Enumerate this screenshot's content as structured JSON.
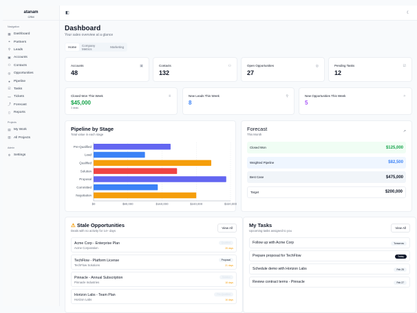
{
  "sidebar": {
    "brand": "atanam",
    "brand_sub": "CRM",
    "sections": [
      {
        "label": "Navigation",
        "items": [
          {
            "label": "Dashboard",
            "icon": "grid-icon"
          },
          {
            "label": "Partners",
            "icon": "handshake-icon"
          },
          {
            "label": "Leads",
            "icon": "user-plus-icon"
          },
          {
            "label": "Accounts",
            "icon": "building-icon"
          },
          {
            "label": "Contacts",
            "icon": "users-icon"
          },
          {
            "label": "Opportunities",
            "icon": "target-icon"
          },
          {
            "label": "Pipeline",
            "icon": "pipeline-icon"
          },
          {
            "label": "Tasks",
            "icon": "checklist-icon"
          },
          {
            "label": "Tickets",
            "icon": "ticket-icon"
          },
          {
            "label": "Forecast",
            "icon": "trend-icon"
          },
          {
            "label": "Reports",
            "icon": "file-icon"
          }
        ]
      },
      {
        "label": "Projects",
        "items": [
          {
            "label": "My Work",
            "icon": "briefcase-icon"
          },
          {
            "label": "All Projects",
            "icon": "folder-icon"
          }
        ]
      },
      {
        "label": "Admin",
        "items": [
          {
            "label": "Settings",
            "icon": "gear-icon"
          }
        ]
      }
    ]
  },
  "header": {
    "title": "Dashboard",
    "subtitle": "Your sales overview at a glance"
  },
  "tabs": [
    "Home",
    "Company Metrics",
    "Marketing"
  ],
  "stats": [
    {
      "label": "Accounts",
      "value": "48"
    },
    {
      "label": "Contacts",
      "value": "132"
    },
    {
      "label": "Open Opportunities",
      "value": "27"
    },
    {
      "label": "Pending Tasks",
      "value": "12"
    }
  ],
  "weekly": [
    {
      "label": "Closed Won This Week",
      "value": "$45,000",
      "note": "3 deals",
      "color": "#16a34a"
    },
    {
      "label": "New Leads This Week",
      "value": "8",
      "color": "#3b82f6"
    },
    {
      "label": "New Opportunities This Week",
      "value": "5",
      "color": "#a855f7"
    }
  ],
  "pipeline": {
    "title": "Pipeline by Stage",
    "subtitle": "Total value in each stage"
  },
  "chart_data": {
    "type": "bar",
    "orientation": "horizontal",
    "categories": [
      "Pre-Qualified",
      "Lead",
      "Qualified",
      "Solution",
      "Proposal",
      "Committed",
      "Negotiation"
    ],
    "values": [
      180000,
      120000,
      275000,
      195000,
      310000,
      150000,
      240000
    ],
    "colors": [
      "#6366f1",
      "#3b82f6",
      "#f59e0b",
      "#ef4444",
      "#6366f1",
      "#3b82f6",
      "#f59e0b"
    ],
    "xlim": [
      0,
      320000
    ],
    "xticks": [
      "$0",
      "$80,000",
      "$160,000",
      "$240,000",
      "$320,000"
    ],
    "grid": true
  },
  "forecast": {
    "title": "Forecast",
    "subtitle": "This Month",
    "rows": [
      {
        "label": "Closed Won",
        "value": "$125,000",
        "bg": "#f0fdf4",
        "color": "#16a34a"
      },
      {
        "label": "Weighted Pipeline",
        "value": "$82,500",
        "bg": "#eff6ff",
        "color": "#3b82f6"
      },
      {
        "label": "Best Case",
        "value": "$475,000",
        "bg": "#f1f5f9",
        "color": "#111827"
      },
      {
        "label": "Target",
        "value": "$200,000",
        "bg": "#ffffff",
        "color": "#111827"
      }
    ]
  },
  "stale": {
    "title": "Stale Opportunities",
    "subtitle": "Deals with no activity for 14+ days",
    "view_all": "View All",
    "items": [
      {
        "name": "Acme Corp - Enterprise Plan",
        "company": "Acme Corporation",
        "stage": "Qualified",
        "days": "28 days"
      },
      {
        "name": "TechFlow - Platform License",
        "company": "TechFlow Solutions",
        "stage": "Proposal",
        "days": "21 days"
      },
      {
        "name": "Pinnacle - Annual Subscription",
        "company": "Pinnacle Industries",
        "stage": "Solution",
        "days": "18 days"
      },
      {
        "name": "Horizon Labs - Team Plan",
        "company": "Horizon Labs",
        "stage": "Pre-Qualified",
        "days": "16 days"
      }
    ]
  },
  "tasks": {
    "title": "My Tasks",
    "subtitle": "Upcoming tasks assigned to you",
    "view_all": "View All",
    "items": [
      {
        "name": "Follow up with Acme Corp",
        "due": "Tomorrow"
      },
      {
        "name": "Prepare proposal for TechFlow",
        "due": "Today"
      },
      {
        "name": "Schedule demo with Horizon Labs",
        "due": "Feb 25"
      },
      {
        "name": "Review contract terms - Pinnacle",
        "due": "Feb 27"
      }
    ]
  }
}
